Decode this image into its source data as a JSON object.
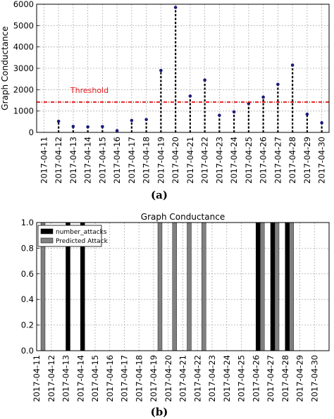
{
  "chart_data": [
    {
      "type": "scatter",
      "style": "stem",
      "caption": "(a)",
      "title": "",
      "xlabel": "",
      "ylabel": "Graph Conductance",
      "ylim": [
        0,
        6000
      ],
      "yticks": [
        0,
        1000,
        2000,
        3000,
        4000,
        5000,
        6000
      ],
      "grid": true,
      "categories": [
        "2017-04-11",
        "2017-04-12",
        "2017-04-13",
        "2017-04-14",
        "2017-04-15",
        "2017-04-16",
        "2017-04-17",
        "2017-04-18",
        "2017-04-19",
        "2017-04-20",
        "2017-04-21",
        "2017-04-22",
        "2017-04-23",
        "2017-04-24",
        "2017-04-25",
        "2017-04-26",
        "2017-04-27",
        "2017-04-28",
        "2017-04-29",
        "2017-04-30"
      ],
      "series": [
        {
          "values": [
            0,
            520,
            280,
            260,
            270,
            80,
            560,
            600,
            2900,
            5850,
            1700,
            2450,
            800,
            960,
            1350,
            1650,
            2250,
            3150,
            850,
            450
          ]
        }
      ],
      "threshold": {
        "label": "Threshold",
        "value": 1420
      },
      "colors": {
        "stem": "#000000",
        "marker": "#1a1a7a",
        "threshold": "#e41a1c"
      }
    },
    {
      "type": "bar",
      "caption": "(b)",
      "title": "Graph Conductance",
      "xlabel": "",
      "ylabel": "",
      "ylim": [
        0,
        1.0
      ],
      "yticks": [
        0.0,
        0.2,
        0.4,
        0.6,
        0.8,
        1.0
      ],
      "grid": true,
      "legend": "top-left",
      "categories": [
        "2017-04-11",
        "2017-04-12",
        "2017-04-13",
        "2017-04-14",
        "2017-04-15",
        "2017-04-16",
        "2017-04-17",
        "2017-04-18",
        "2017-04-19",
        "2017-04-20",
        "2017-04-21",
        "2017-04-22",
        "2017-04-23",
        "2017-04-24",
        "2017-04-25",
        "2017-04-26",
        "2017-04-27",
        "2017-04-28",
        "2017-04-29",
        "2017-04-30"
      ],
      "series": [
        {
          "name": "number_attacks",
          "color": "#000000",
          "values": [
            0,
            0,
            1,
            1,
            0,
            0,
            0,
            0,
            0,
            0,
            0,
            0,
            0,
            0,
            0,
            1,
            1,
            1,
            0,
            0
          ]
        },
        {
          "name": "Predicted Attack",
          "color": "#808080",
          "values": [
            1,
            0,
            0,
            0,
            0,
            0,
            0,
            0,
            1,
            1,
            1,
            1,
            0,
            0,
            0,
            1,
            1,
            1,
            0,
            0
          ]
        }
      ]
    }
  ]
}
